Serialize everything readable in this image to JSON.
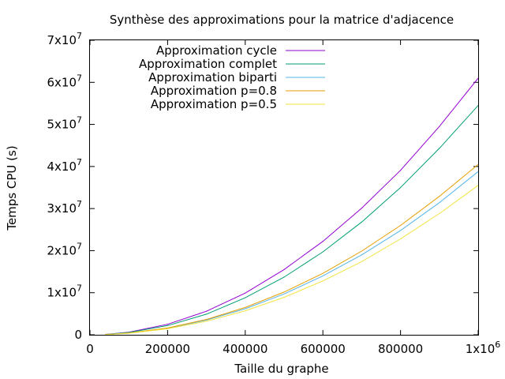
{
  "chart_data": {
    "type": "line",
    "title": "Synthèse des approximations pour la matrice d'adjacence",
    "xlabel": "Taille du graphe",
    "ylabel": "Temps CPU (s)",
    "xlim": [
      0,
      1000000
    ],
    "ylim": [
      0,
      70000000
    ],
    "grid": false,
    "legend_position": "top-left",
    "x_ticks": [
      {
        "value": 0,
        "label": "0"
      },
      {
        "value": 200000,
        "label": "200000"
      },
      {
        "value": 400000,
        "label": "400000"
      },
      {
        "value": 600000,
        "label": "600000"
      },
      {
        "value": 800000,
        "label": "800000"
      },
      {
        "value": 1000000,
        "label": "1x10",
        "exp": "6"
      }
    ],
    "y_ticks": [
      {
        "value": 0,
        "label": "0"
      },
      {
        "value": 10000000,
        "label": "1x10",
        "exp": "7"
      },
      {
        "value": 20000000,
        "label": "2x10",
        "exp": "7"
      },
      {
        "value": 30000000,
        "label": "3x10",
        "exp": "7"
      },
      {
        "value": 40000000,
        "label": "4x10",
        "exp": "7"
      },
      {
        "value": 50000000,
        "label": "5x10",
        "exp": "7"
      },
      {
        "value": 60000000,
        "label": "6x10",
        "exp": "7"
      },
      {
        "value": 70000000,
        "label": "7x10",
        "exp": "7"
      }
    ],
    "x": [
      40000,
      100000,
      200000,
      300000,
      400000,
      500000,
      600000,
      700000,
      800000,
      900000,
      1000000
    ],
    "series": [
      {
        "name": "Approximation cycle",
        "color": "#9400d3",
        "values": [
          100000,
          600000,
          2500000,
          5600000,
          9900000,
          15500000,
          22200000,
          30100000,
          39100000,
          49500000,
          61000000
        ]
      },
      {
        "name": "Approximation complet",
        "color": "#009e73",
        "values": [
          90000,
          550000,
          2200000,
          4900000,
          8800000,
          13700000,
          19700000,
          26800000,
          35000000,
          44300000,
          54500000
        ]
      },
      {
        "name": "Approximation biparti",
        "color": "#56b4e9",
        "values": [
          60000,
          390000,
          1550000,
          3500000,
          6200000,
          9700000,
          14000000,
          19000000,
          24800000,
          31400000,
          38800000
        ]
      },
      {
        "name": "Approximation p=0.8",
        "color": "#e69f00",
        "values": [
          65000,
          410000,
          1620000,
          3650000,
          6500000,
          10150000,
          14600000,
          19900000,
          26000000,
          32900000,
          40500000
        ]
      },
      {
        "name": "Approximation p=0.5",
        "color": "#f0e442",
        "values": [
          55000,
          360000,
          1420000,
          3200000,
          5700000,
          8900000,
          12800000,
          17400000,
          22800000,
          28800000,
          35500000
        ]
      }
    ]
  }
}
